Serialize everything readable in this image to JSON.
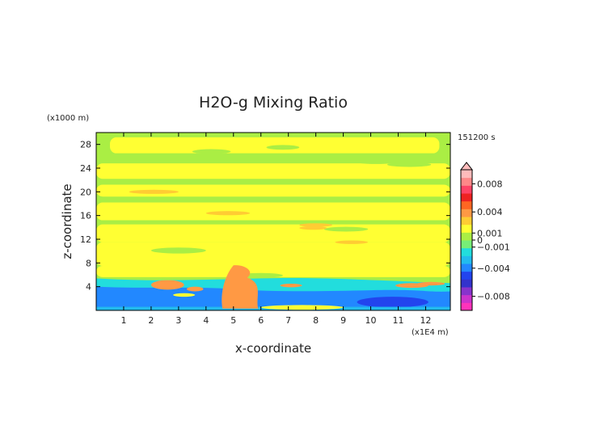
{
  "chart_data": {
    "type": "heatmap",
    "title": "H2O-g Mixing Ratio",
    "xlabel": "x-coordinate",
    "ylabel": "z-coordinate",
    "x_unit": "(x1E4 m)",
    "y_unit": "(x1000 m)",
    "time_label": "151200 s",
    "xlim": [
      0,
      12.9
    ],
    "ylim": [
      0,
      30
    ],
    "x_ticks": [
      "1",
      "2",
      "3",
      "4",
      "5",
      "6",
      "7",
      "8",
      "9",
      "10",
      "11",
      "12"
    ],
    "y_ticks": [
      "4",
      "8",
      "12",
      "16",
      "20",
      "24",
      "28"
    ],
    "colorbar": {
      "range": [
        -0.01,
        0.01
      ],
      "tick_labels": [
        {
          "value": 0.008,
          "label": "0.008"
        },
        {
          "value": 0.004,
          "label": "0.004"
        },
        {
          "value": 0.001,
          "label": "0.001"
        },
        {
          "value": 0.0,
          "label": "0"
        },
        {
          "value": -0.001,
          "label": "−0.001"
        },
        {
          "value": -0.004,
          "label": "−0.004"
        },
        {
          "value": -0.008,
          "label": "−0.008"
        }
      ],
      "colors": [
        "#ff33bb",
        "#cc33cc",
        "#8833cc",
        "#3333cc",
        "#2244ee",
        "#2288ff",
        "#22bbee",
        "#22dddd",
        "#77ee77",
        "#aaee44",
        "#ffff33",
        "#ffcc33",
        "#ff9944",
        "#ff6622",
        "#ee2222",
        "#ff4466",
        "#ff8888",
        "#ffbbbb"
      ]
    },
    "field_regions": [
      {
        "level": "low",
        "x": [
          0,
          12.9
        ],
        "z": [
          0,
          3.5
        ],
        "color": "#2288ff"
      },
      {
        "level": "moist",
        "x": [
          0,
          12.9
        ],
        "z": [
          3.5,
          5.5
        ],
        "color": "#22dddd"
      },
      {
        "level": "near-zero",
        "x": [
          0,
          12.9
        ],
        "z": [
          5.5,
          30
        ],
        "color": "#aaee44"
      },
      {
        "level": "slightly-positive",
        "x": [
          0,
          12.9
        ],
        "z": [
          6,
          28
        ],
        "color": "#ffff33"
      },
      {
        "level": "positive",
        "x": [
          4.6,
          5.9
        ],
        "z": [
          1,
          7.5
        ],
        "color": "#ff9944"
      }
    ]
  }
}
